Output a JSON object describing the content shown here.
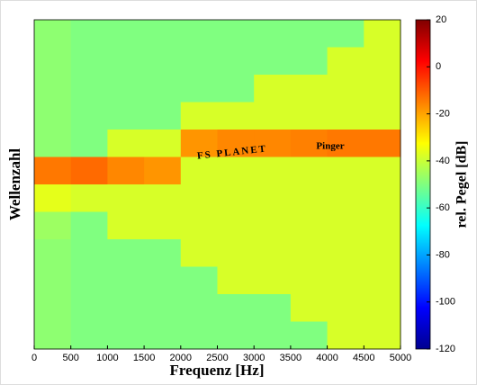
{
  "chart_data": {
    "type": "heatmap",
    "xlabel": "Frequenz [Hz]",
    "ylabel": "Wellenzahl",
    "colorbar_label": "rel. Pegel [dB]",
    "xlim": [
      0,
      5000
    ],
    "xticks": [
      0,
      500,
      1000,
      1500,
      2000,
      2500,
      3000,
      3500,
      4000,
      4500,
      5000
    ],
    "clim": [
      -120,
      20
    ],
    "cticks": [
      20,
      0,
      -20,
      -40,
      -60,
      -80,
      -100,
      -120
    ],
    "colormap": "jet",
    "annotations": [
      "FS PLANET",
      "Pinger"
    ],
    "z": [
      [
        -48,
        -50,
        -50,
        -50,
        -50,
        -50,
        -50,
        -50,
        -50,
        -38
      ],
      [
        -48,
        -50,
        -50,
        -50,
        -50,
        -50,
        -50,
        -50,
        -38,
        -38
      ],
      [
        -48,
        -50,
        -50,
        -50,
        -50,
        -50,
        -38,
        -38,
        -38,
        -38
      ],
      [
        -48,
        -50,
        -50,
        -50,
        -38,
        -38,
        -38,
        -38,
        -38,
        -38
      ],
      [
        -48,
        -50,
        -38,
        -38,
        -18,
        -16,
        -16,
        -15,
        -14,
        -14
      ],
      [
        -14,
        -12,
        -16,
        -18,
        -38,
        -38,
        -38,
        -38,
        -38,
        -38
      ],
      [
        -36,
        -38,
        -38,
        -38,
        -38,
        -38,
        -38,
        -38,
        -38,
        -38
      ],
      [
        -46,
        -50,
        -38,
        -38,
        -38,
        -38,
        -38,
        -38,
        -38,
        -38
      ],
      [
        -48,
        -50,
        -50,
        -50,
        -38,
        -38,
        -38,
        -38,
        -38,
        -38
      ],
      [
        -48,
        -50,
        -50,
        -50,
        -50,
        -38,
        -38,
        -38,
        -38,
        -38
      ],
      [
        -48,
        -50,
        -50,
        -50,
        -50,
        -50,
        -50,
        -38,
        -38,
        -38
      ],
      [
        -48,
        -50,
        -50,
        -50,
        -50,
        -50,
        -50,
        -50,
        -38,
        -38
      ]
    ]
  }
}
